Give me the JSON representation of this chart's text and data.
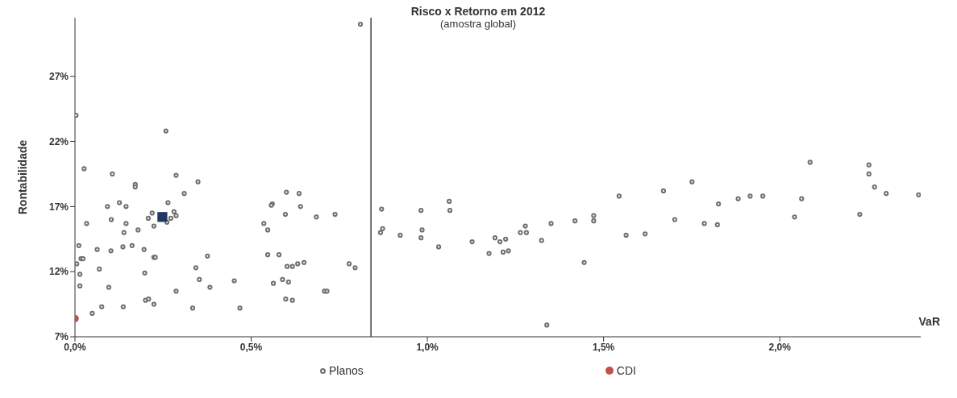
{
  "chart_data": {
    "type": "scatter",
    "title": "Risco x Retorno em 2012",
    "subtitle": "(amostra global)",
    "xlabel": "VaR",
    "ylabel": "Rontabilidade",
    "xlim": [
      0,
      2.4
    ],
    "ylim": [
      7,
      31.5
    ],
    "xticks": [
      {
        "value": 0,
        "label": "0,0%"
      },
      {
        "value": 0.5,
        "label": "0,5%"
      },
      {
        "value": 1,
        "label": "1,0%"
      },
      {
        "value": 1.5,
        "label": "1,5%"
      },
      {
        "value": 2,
        "label": "2,0%"
      }
    ],
    "yticks": [
      {
        "value": 7,
        "label": "7%"
      },
      {
        "value": 12,
        "label": "12%"
      },
      {
        "value": 17,
        "label": "17%"
      },
      {
        "value": 22,
        "label": "22%"
      },
      {
        "value": 27,
        "label": "27%"
      }
    ],
    "grid": false,
    "legend": "bottom",
    "ref_lines": [
      {
        "axis": "x",
        "value": 0.84,
        "label": null,
        "color": "#404040"
      }
    ],
    "series": [
      {
        "name": "Planos",
        "color": "#707070",
        "marker": "circle",
        "x": [
          0.003,
          0.258,
          0.026,
          0.106,
          0.287,
          0.349,
          0.171,
          0.171,
          0.31,
          0.6,
          0.636,
          0.264,
          0.126,
          0.092,
          0.145,
          0.56,
          0.557,
          0.64,
          0.219,
          0.208,
          0.281,
          0.287,
          0.272,
          0.261,
          0.224,
          0.103,
          0.145,
          0.033,
          0.597,
          0.685,
          0.738,
          0.139,
          0.179,
          0.536,
          0.547,
          0.011,
          0.063,
          0.102,
          0.136,
          0.162,
          0.196,
          0.224,
          0.228,
          0.376,
          0.547,
          0.579,
          0.017,
          0.023,
          0.005,
          0.069,
          0.198,
          0.014,
          0.343,
          0.602,
          0.617,
          0.632,
          0.65,
          0.778,
          0.795,
          0.014,
          0.096,
          0.353,
          0.383,
          0.452,
          0.563,
          0.589,
          0.606,
          0.287,
          0.708,
          0.715,
          0.2,
          0.209,
          0.598,
          0.617,
          0.224,
          0.076,
          0.137,
          0.334,
          0.468,
          0.049,
          0.81,
          0.87,
          0.873,
          0.867,
          0.923,
          0.982,
          0.985,
          0.982,
          1.032,
          1.062,
          1.064,
          1.127,
          1.175,
          1.192,
          1.206,
          1.222,
          1.215,
          1.23,
          1.264,
          1.278,
          1.281,
          1.324,
          1.339,
          1.351,
          1.419,
          1.445,
          1.472,
          1.472,
          1.544,
          1.564,
          1.618,
          1.67,
          1.702,
          1.751,
          1.786,
          1.823,
          1.826,
          1.882,
          1.916,
          1.952,
          2.042,
          2.062,
          2.086,
          2.227,
          2.253,
          2.253,
          2.269,
          2.302,
          2.394
        ],
        "values": [
          24.0,
          22.8,
          19.9,
          19.5,
          19.4,
          18.9,
          18.7,
          18.5,
          18.0,
          18.1,
          18.0,
          17.3,
          17.3,
          17.0,
          17.0,
          17.2,
          17.1,
          17.0,
          16.5,
          16.1,
          16.6,
          16.3,
          16.1,
          15.8,
          15.5,
          16.0,
          15.7,
          15.7,
          16.4,
          16.2,
          16.4,
          15.0,
          15.2,
          15.7,
          15.2,
          14.0,
          13.7,
          13.6,
          13.9,
          14.0,
          13.7,
          13.1,
          13.1,
          13.2,
          13.3,
          13.3,
          13.0,
          13.0,
          12.6,
          12.2,
          11.9,
          11.8,
          12.3,
          12.4,
          12.4,
          12.6,
          12.7,
          12.6,
          12.3,
          10.9,
          10.8,
          11.4,
          10.8,
          11.3,
          11.1,
          11.4,
          11.2,
          10.5,
          10.5,
          10.5,
          9.8,
          9.9,
          9.9,
          9.8,
          9.5,
          9.3,
          9.3,
          9.2,
          9.2,
          8.8,
          31.0,
          16.8,
          15.3,
          15.0,
          14.8,
          16.7,
          15.2,
          14.6,
          13.9,
          17.4,
          16.7,
          14.3,
          13.4,
          14.6,
          14.3,
          14.5,
          13.5,
          13.6,
          15.0,
          15.5,
          15.0,
          14.4,
          7.9,
          15.7,
          15.9,
          12.7,
          16.3,
          15.9,
          17.8,
          14.8,
          14.9,
          18.2,
          16.0,
          18.9,
          15.7,
          15.6,
          17.2,
          17.6,
          17.8,
          17.8,
          16.2,
          17.6,
          20.4,
          16.4,
          20.2,
          19.5,
          18.5,
          18.0,
          17.9
        ]
      },
      {
        "name": "CDI",
        "color": "#c0504d",
        "marker": "circle",
        "x": [
          0
        ],
        "values": [
          8.4
        ]
      },
      {
        "color": "#1f3864",
        "marker": "square",
        "x": [
          0.248
        ],
        "values": [
          16.2
        ]
      }
    ]
  }
}
